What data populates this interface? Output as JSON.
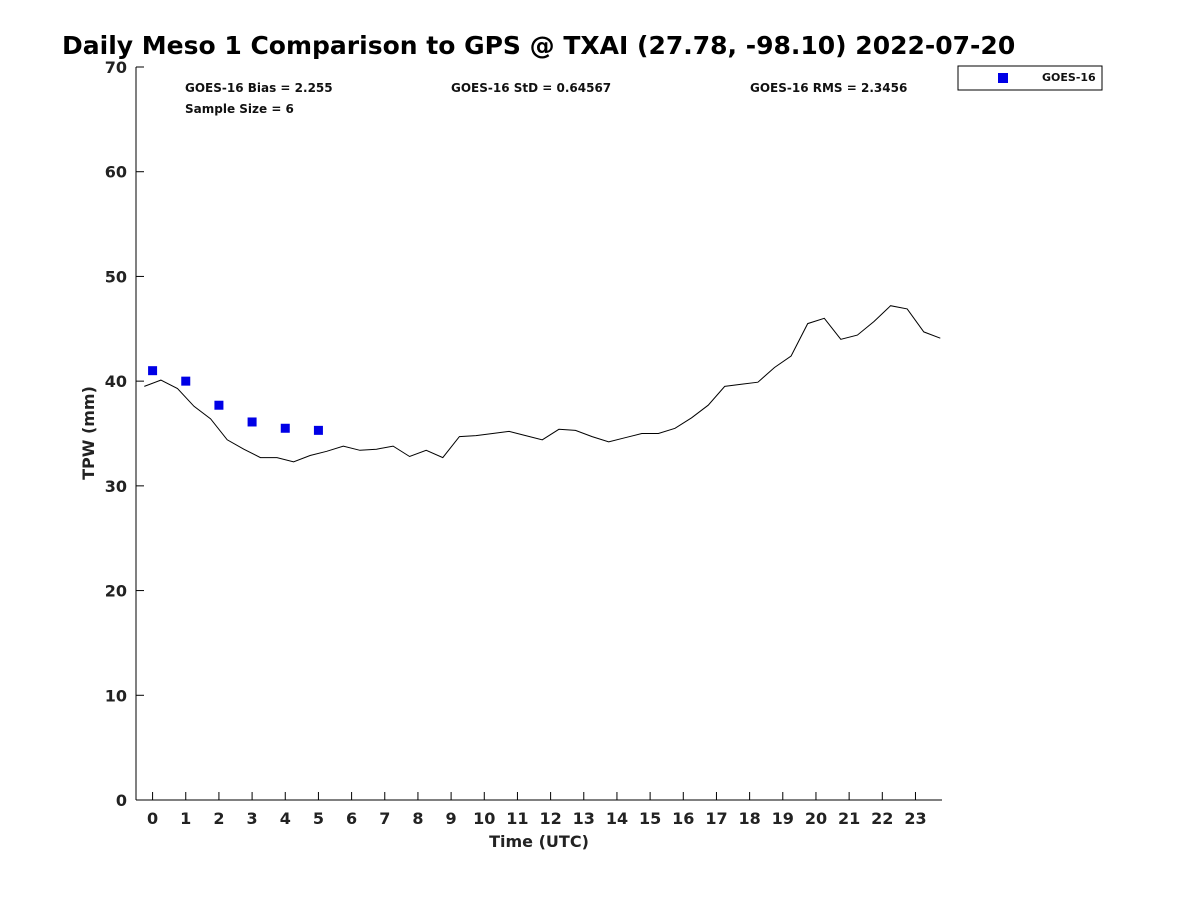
{
  "chart_data": {
    "type": "line",
    "title": "Daily Meso 1 Comparison to GPS @ TXAI (27.78, -98.10) 2022-07-20",
    "xlabel": "Time (UTC)",
    "ylabel": "TPW (mm)",
    "xlim": [
      -0.5,
      23.8
    ],
    "ylim": [
      0,
      70
    ],
    "x_ticks": [
      "0",
      "1",
      "2",
      "3",
      "4",
      "5",
      "6",
      "7",
      "8",
      "9",
      "10",
      "11",
      "12",
      "13",
      "14",
      "15",
      "16",
      "17",
      "18",
      "19",
      "20",
      "21",
      "22",
      "23"
    ],
    "y_ticks": [
      "0",
      "10",
      "20",
      "30",
      "40",
      "50",
      "60",
      "70"
    ],
    "grid": false,
    "legend_position": "top-right, outside plot",
    "stats": {
      "bias": "GOES-16 Bias = 2.255",
      "std": "GOES-16 StD = 0.64567",
      "rms": "GOES-16 RMS = 2.3456",
      "sample": "Sample Size = 6"
    },
    "series": [
      {
        "name": "GOES-16",
        "kind": "scatter",
        "color": "#0000e6",
        "x": [
          0,
          1,
          2,
          3,
          4,
          5
        ],
        "y": [
          41.0,
          40.0,
          37.7,
          36.1,
          35.5,
          35.3
        ]
      },
      {
        "kind": "line",
        "color": "#000000",
        "x": [
          -0.25,
          0.25,
          0.75,
          1.25,
          1.75,
          2.25,
          2.75,
          3.25,
          3.75,
          4.25,
          4.75,
          5.25,
          5.75,
          6.25,
          6.75,
          7.25,
          7.75,
          8.25,
          8.75,
          9.25,
          9.75,
          10.25,
          10.75,
          11.25,
          11.75,
          12.25,
          12.75,
          13.25,
          13.75,
          14.25,
          14.75,
          15.25,
          15.75,
          16.25,
          16.75,
          17.25,
          17.75,
          18.25,
          18.75,
          19.25,
          19.75,
          20.25,
          20.75,
          21.25,
          21.75,
          22.25,
          22.75,
          23.25,
          23.75
        ],
        "y": [
          39.5,
          40.1,
          39.3,
          37.6,
          36.4,
          34.4,
          33.5,
          32.7,
          32.7,
          32.3,
          32.9,
          33.3,
          33.8,
          33.4,
          33.5,
          33.8,
          32.8,
          33.4,
          32.7,
          34.7,
          34.8,
          35.0,
          35.2,
          34.8,
          34.4,
          35.4,
          35.3,
          34.7,
          34.2,
          34.6,
          35.0,
          35.0,
          35.5,
          36.5,
          37.7,
          39.5,
          39.7,
          39.9,
          41.3,
          42.4,
          45.5,
          46.0,
          44.0,
          44.4,
          45.7,
          47.2,
          46.9,
          44.7,
          44.1
        ]
      }
    ]
  }
}
